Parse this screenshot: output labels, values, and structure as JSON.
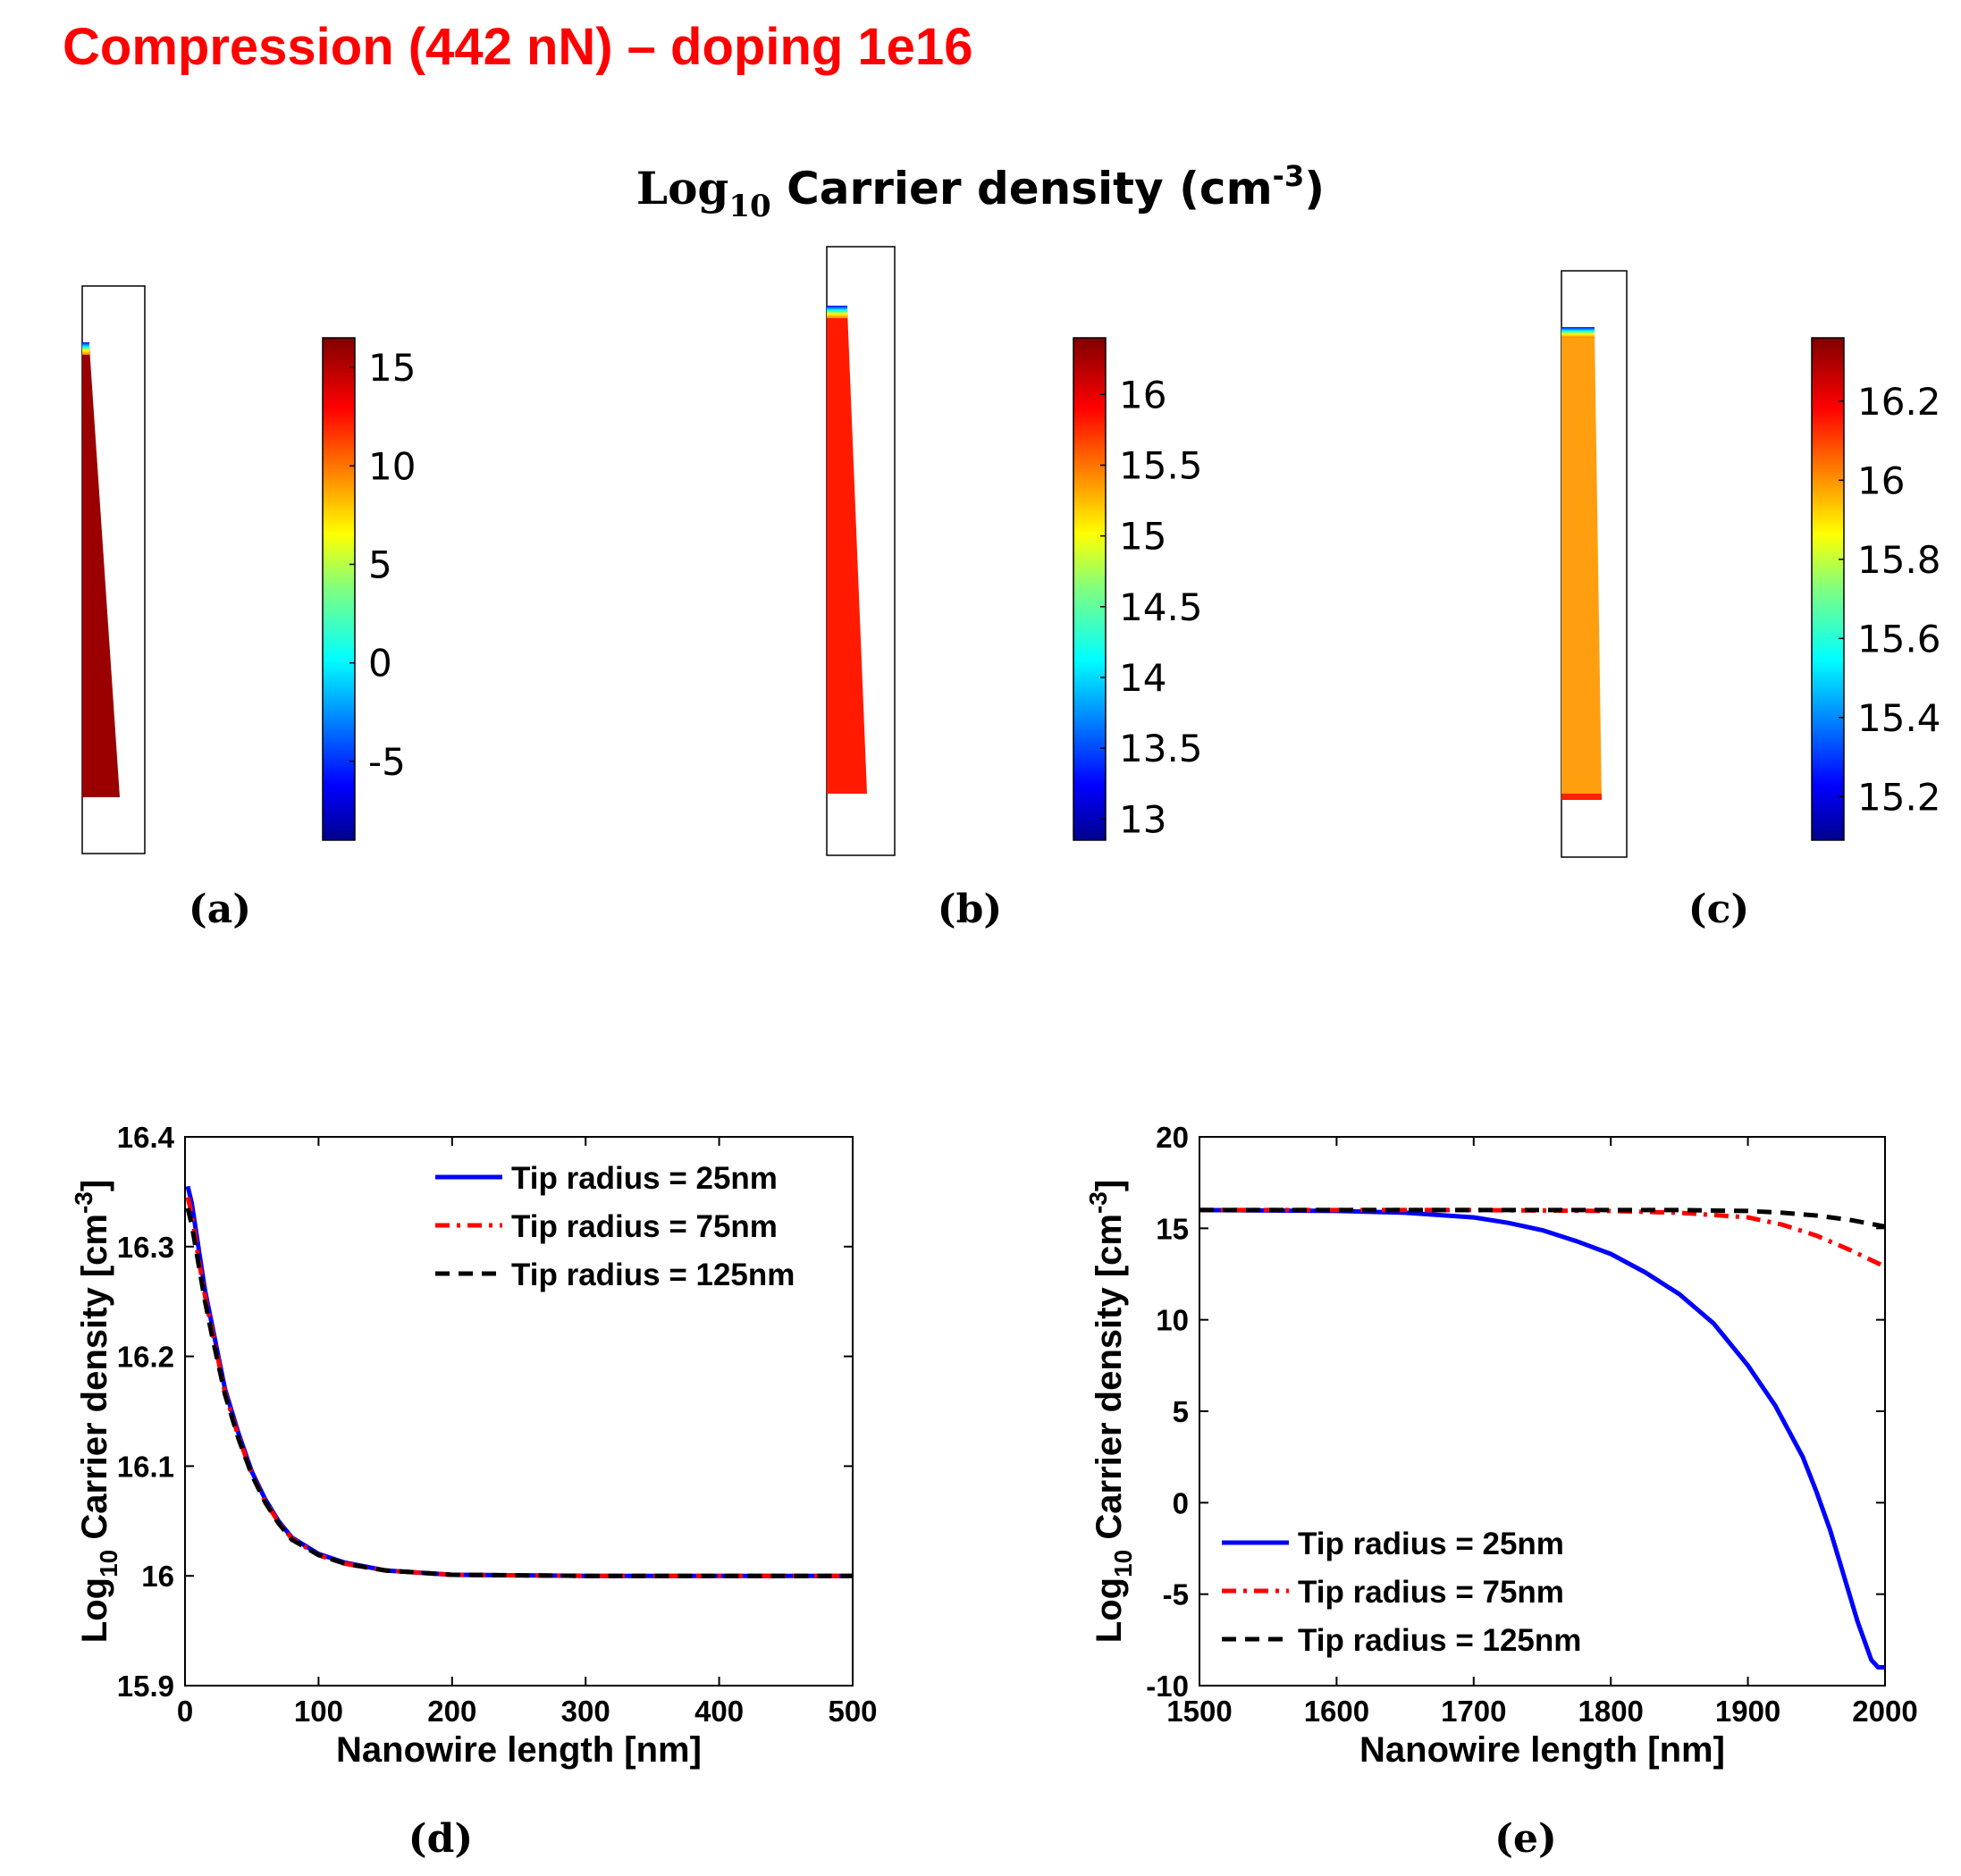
{
  "header": {
    "title": "Compression (442 nN) – doping 1e16",
    "title_color": "#ff0000"
  },
  "maps": {
    "title_log": "Log",
    "title_sub": "10",
    "title_main": " Carrier density (cm",
    "title_sup": "-3",
    "title_end": ")",
    "panels": [
      {
        "label": "(a)",
        "fill": "#9a0000",
        "ticks": [
          15,
          10,
          5,
          0,
          -5
        ],
        "range": [
          -9,
          16.5
        ]
      },
      {
        "label": "(b)",
        "fill": "#ff1a00",
        "ticks": [
          16,
          15.5,
          15,
          14.5,
          14,
          13.5,
          13
        ],
        "range": [
          12.85,
          16.4
        ]
      },
      {
        "label": "(c)",
        "fill": "#ff9f10",
        "ticks": [
          16.2,
          16,
          15.8,
          15.6,
          15.4,
          15.2
        ],
        "range": [
          15.09,
          16.36
        ]
      }
    ]
  },
  "chart_data": [
    {
      "type": "line",
      "panel_label": "(d)",
      "xlabel": "Nanowire length [nm]",
      "ylabel_main": "Log",
      "ylabel_sub": "10",
      "ylabel_rest": " Carrier density [cm",
      "ylabel_sup": "-3",
      "ylabel_end": "]",
      "xlim": [
        0,
        500
      ],
      "ylim": [
        15.9,
        16.4
      ],
      "xticks": [
        0,
        100,
        200,
        300,
        400,
        500
      ],
      "yticks": [
        15.9,
        16,
        16.1,
        16.2,
        16.3,
        16.4
      ],
      "legend_position": "top-right",
      "series": [
        {
          "name": "Tip radius = 25nm",
          "color": "#0000ff",
          "style": "solid",
          "x": [
            2,
            5,
            10,
            15,
            20,
            30,
            40,
            50,
            60,
            70,
            80,
            100,
            120,
            150,
            200,
            300,
            400,
            500
          ],
          "y": [
            16.355,
            16.34,
            16.3,
            16.26,
            16.23,
            16.17,
            16.13,
            16.095,
            16.07,
            16.05,
            16.035,
            16.02,
            16.012,
            16.005,
            16.001,
            16.0,
            16.0,
            16.0
          ]
        },
        {
          "name": "Tip radius = 75nm",
          "color": "#ff0000",
          "style": "dashdot",
          "x": [
            2,
            5,
            10,
            15,
            20,
            30,
            40,
            50,
            60,
            70,
            80,
            100,
            120,
            150,
            200,
            300,
            400,
            500
          ],
          "y": [
            16.345,
            16.33,
            16.29,
            16.255,
            16.225,
            16.167,
            16.127,
            16.093,
            16.068,
            16.049,
            16.034,
            16.019,
            16.011,
            16.005,
            16.001,
            16.0,
            16.0,
            16.0
          ]
        },
        {
          "name": "Tip radius = 125nm",
          "color": "#000000",
          "style": "dashed",
          "x": [
            2,
            5,
            10,
            15,
            20,
            30,
            40,
            50,
            60,
            70,
            80,
            100,
            120,
            150,
            200,
            300,
            400,
            500
          ],
          "y": [
            16.335,
            16.32,
            16.285,
            16.25,
            16.22,
            16.165,
            16.125,
            16.092,
            16.067,
            16.048,
            16.033,
            16.019,
            16.011,
            16.005,
            16.001,
            16.0,
            16.0,
            16.0
          ]
        }
      ]
    },
    {
      "type": "line",
      "panel_label": "(e)",
      "xlabel": "Nanowire length [nm]",
      "ylabel_main": "Log",
      "ylabel_sub": "10",
      "ylabel_rest": " Carrier density [cm",
      "ylabel_sup": "-3",
      "ylabel_end": "]",
      "xlim": [
        1500,
        2000
      ],
      "ylim": [
        -10,
        20
      ],
      "xticks": [
        1500,
        1600,
        1700,
        1800,
        1900,
        2000
      ],
      "yticks": [
        -10,
        -5,
        0,
        5,
        10,
        15,
        20
      ],
      "legend_position": "bottom-left",
      "series": [
        {
          "name": "Tip radius = 25nm",
          "color": "#0000ff",
          "style": "solid",
          "x": [
            1500,
            1600,
            1650,
            1700,
            1725,
            1750,
            1775,
            1800,
            1825,
            1850,
            1875,
            1900,
            1920,
            1940,
            1950,
            1960,
            1970,
            1980,
            1990,
            1995,
            2000
          ],
          "y": [
            16.0,
            15.95,
            15.85,
            15.6,
            15.3,
            14.9,
            14.3,
            13.6,
            12.6,
            11.4,
            9.8,
            7.5,
            5.3,
            2.5,
            0.6,
            -1.5,
            -4.0,
            -6.5,
            -8.6,
            -9.0,
            -9.0
          ]
        },
        {
          "name": "Tip radius = 75nm",
          "color": "#ff0000",
          "style": "dashdot",
          "x": [
            1500,
            1600,
            1700,
            1800,
            1850,
            1900,
            1925,
            1950,
            1975,
            2000
          ],
          "y": [
            16.0,
            16.0,
            16.0,
            15.95,
            15.85,
            15.6,
            15.2,
            14.6,
            13.8,
            12.9
          ]
        },
        {
          "name": "Tip radius = 125nm",
          "color": "#000000",
          "style": "dashed",
          "x": [
            1500,
            1600,
            1700,
            1800,
            1850,
            1900,
            1925,
            1950,
            1975,
            2000
          ],
          "y": [
            16.0,
            16.0,
            16.0,
            16.0,
            16.0,
            15.95,
            15.85,
            15.7,
            15.45,
            15.1
          ]
        }
      ]
    }
  ]
}
